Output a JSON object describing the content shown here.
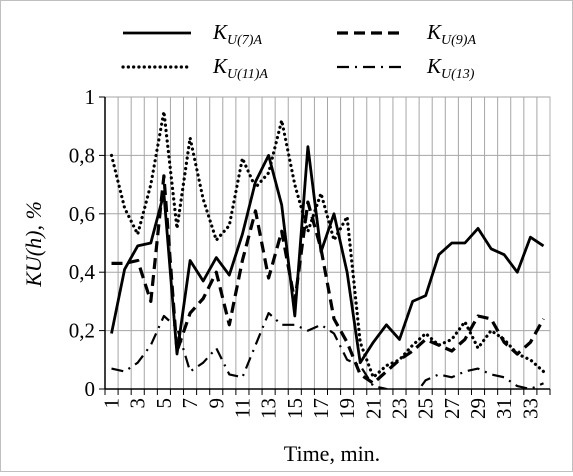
{
  "chart_data": {
    "type": "line",
    "title": "",
    "xlabel": "Time, min.",
    "ylabel": "KU(h), %",
    "x": [
      1,
      2,
      3,
      4,
      5,
      6,
      7,
      8,
      9,
      10,
      11,
      12,
      13,
      14,
      15,
      16,
      17,
      18,
      19,
      20,
      21,
      22,
      23,
      24,
      25,
      26,
      27,
      28,
      29,
      30,
      31,
      32,
      33,
      34
    ],
    "x_tick_labels": [
      "1",
      "3",
      "5",
      "7",
      "9",
      "11",
      "13",
      "15",
      "17",
      "19",
      "21",
      "23",
      "25",
      "27",
      "29",
      "31",
      "33"
    ],
    "ylim": [
      0,
      1
    ],
    "y_ticks": [
      0,
      0.2,
      0.4,
      0.6,
      0.8,
      1
    ],
    "y_tick_labels": [
      "0",
      "0,2",
      "0,4",
      "0,6",
      "0,8",
      "1"
    ],
    "grid": true,
    "legend_position": "top",
    "series": [
      {
        "name": "K_U(7)A",
        "legend_main": "K",
        "legend_sub": "U(7)A",
        "style": "solid",
        "values": [
          0.19,
          0.41,
          0.49,
          0.5,
          0.67,
          0.12,
          0.44,
          0.37,
          0.45,
          0.39,
          0.53,
          0.71,
          0.8,
          0.63,
          0.25,
          0.83,
          0.47,
          0.6,
          0.4,
          0.09,
          0.16,
          0.22,
          0.17,
          0.3,
          0.32,
          0.46,
          0.5,
          0.5,
          0.55,
          0.48,
          0.46,
          0.4,
          0.52,
          0.49
        ]
      },
      {
        "name": "K_U(9)A",
        "legend_main": "K",
        "legend_sub": "U(9)A",
        "style": "dashed",
        "values": [
          0.43,
          0.43,
          0.44,
          0.3,
          0.73,
          0.13,
          0.26,
          0.31,
          0.4,
          0.22,
          0.44,
          0.61,
          0.38,
          0.54,
          0.3,
          0.64,
          0.48,
          0.24,
          0.16,
          0.05,
          0.02,
          0.06,
          0.1,
          0.13,
          0.17,
          0.15,
          0.13,
          0.17,
          0.25,
          0.24,
          0.16,
          0.12,
          0.16,
          0.24
        ]
      },
      {
        "name": "K_U(11)A",
        "legend_main": "K",
        "legend_sub": "U(11)A",
        "style": "dotted",
        "values": [
          0.8,
          0.62,
          0.53,
          0.7,
          0.95,
          0.55,
          0.86,
          0.65,
          0.51,
          0.56,
          0.79,
          0.69,
          0.74,
          0.92,
          0.7,
          0.54,
          0.67,
          0.51,
          0.59,
          0.16,
          0.04,
          0.08,
          0.1,
          0.15,
          0.19,
          0.15,
          0.17,
          0.23,
          0.14,
          0.2,
          0.17,
          0.12,
          0.1,
          0.06
        ]
      },
      {
        "name": "K_U(13)",
        "legend_main": "K",
        "legend_sub": "U(13)",
        "style": "dashdot",
        "values": [
          0.07,
          0.06,
          0.09,
          0.15,
          0.25,
          0.21,
          0.06,
          0.09,
          0.14,
          0.05,
          0.04,
          0.15,
          0.26,
          0.22,
          0.22,
          0.2,
          0.22,
          0.19,
          0.1,
          0.08,
          0.01,
          0.0,
          -0.03,
          -0.03,
          0.03,
          0.05,
          0.04,
          0.06,
          0.07,
          0.05,
          0.04,
          0.01,
          0.0,
          0.02
        ]
      }
    ]
  }
}
